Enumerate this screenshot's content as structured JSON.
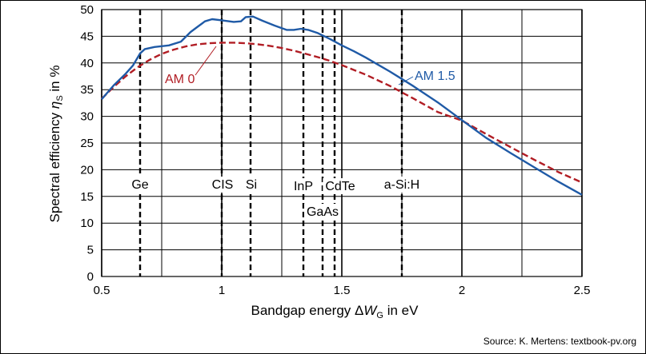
{
  "source_note": "Source: K. Mertens: textbook-pv.org",
  "chart_data": {
    "type": "line",
    "xlabel_prefix": "Bandgap energy Δ",
    "xlabel_var": "W",
    "xlabel_sub": "G",
    "xlabel_suffix": " in eV",
    "ylabel_prefix": "Spectral efficiency ",
    "ylabel_var": "η",
    "ylabel_sub": "S",
    "ylabel_suffix": " in %",
    "xlim": [
      0.5,
      2.5
    ],
    "ylim": [
      0,
      50
    ],
    "x_ticks": [
      "0.5",
      "1",
      "1.5",
      "2",
      "2.5"
    ],
    "y_ticks": [
      "0",
      "5",
      "10",
      "15",
      "20",
      "25",
      "30",
      "35",
      "40",
      "45",
      "50"
    ],
    "grid": true,
    "series": [
      {
        "name": "AM 1.5",
        "color": "#1f5aa6",
        "style": "solid",
        "x": [
          0.5,
          0.55,
          0.6,
          0.63,
          0.66,
          0.68,
          0.72,
          0.78,
          0.83,
          0.87,
          0.9,
          0.93,
          0.96,
          1.0,
          1.05,
          1.08,
          1.1,
          1.13,
          1.17,
          1.22,
          1.27,
          1.3,
          1.33,
          1.36,
          1.4,
          1.45,
          1.5,
          1.55,
          1.6,
          1.65,
          1.7,
          1.75,
          1.8,
          1.9,
          2.0,
          2.1,
          2.2,
          2.3,
          2.4,
          2.5
        ],
        "y": [
          33.2,
          35.8,
          38.0,
          39.5,
          41.8,
          42.6,
          43.0,
          43.3,
          44.0,
          45.8,
          46.8,
          47.8,
          48.2,
          48.0,
          47.7,
          47.8,
          48.6,
          48.7,
          47.9,
          47.0,
          46.2,
          46.2,
          46.4,
          46.2,
          45.6,
          44.5,
          43.3,
          42.2,
          41.0,
          39.7,
          38.4,
          37.0,
          35.6,
          32.6,
          29.3,
          26.0,
          23.2,
          20.5,
          17.8,
          15.3
        ]
      },
      {
        "name": "AM 0",
        "color": "#b11d24",
        "style": "dashed",
        "x": [
          0.5,
          0.55,
          0.6,
          0.65,
          0.7,
          0.75,
          0.8,
          0.85,
          0.9,
          0.95,
          1.0,
          1.05,
          1.1,
          1.15,
          1.2,
          1.25,
          1.3,
          1.35,
          1.4,
          1.45,
          1.5,
          1.6,
          1.7,
          1.8,
          1.9,
          2.0,
          2.1,
          2.2,
          2.3,
          2.4,
          2.5
        ],
        "y": [
          33.3,
          35.5,
          37.5,
          39.2,
          40.6,
          41.7,
          42.5,
          43.1,
          43.5,
          43.7,
          43.8,
          43.8,
          43.7,
          43.5,
          43.2,
          42.8,
          42.3,
          41.7,
          41.1,
          40.4,
          39.6,
          37.8,
          35.7,
          33.3,
          30.8,
          29.2,
          26.7,
          24.3,
          21.9,
          19.6,
          17.6
        ]
      }
    ],
    "annotations": [
      {
        "text": "Ge",
        "x": 0.66
      },
      {
        "text": "CIS",
        "x": 1.0
      },
      {
        "text": "Si",
        "x": 1.12
      },
      {
        "text": "InP",
        "x": 1.34
      },
      {
        "text": "GaAs",
        "x": 1.42
      },
      {
        "text": "CdTe",
        "x": 1.47
      },
      {
        "text": "a-Si:H",
        "x": 1.75
      }
    ]
  }
}
